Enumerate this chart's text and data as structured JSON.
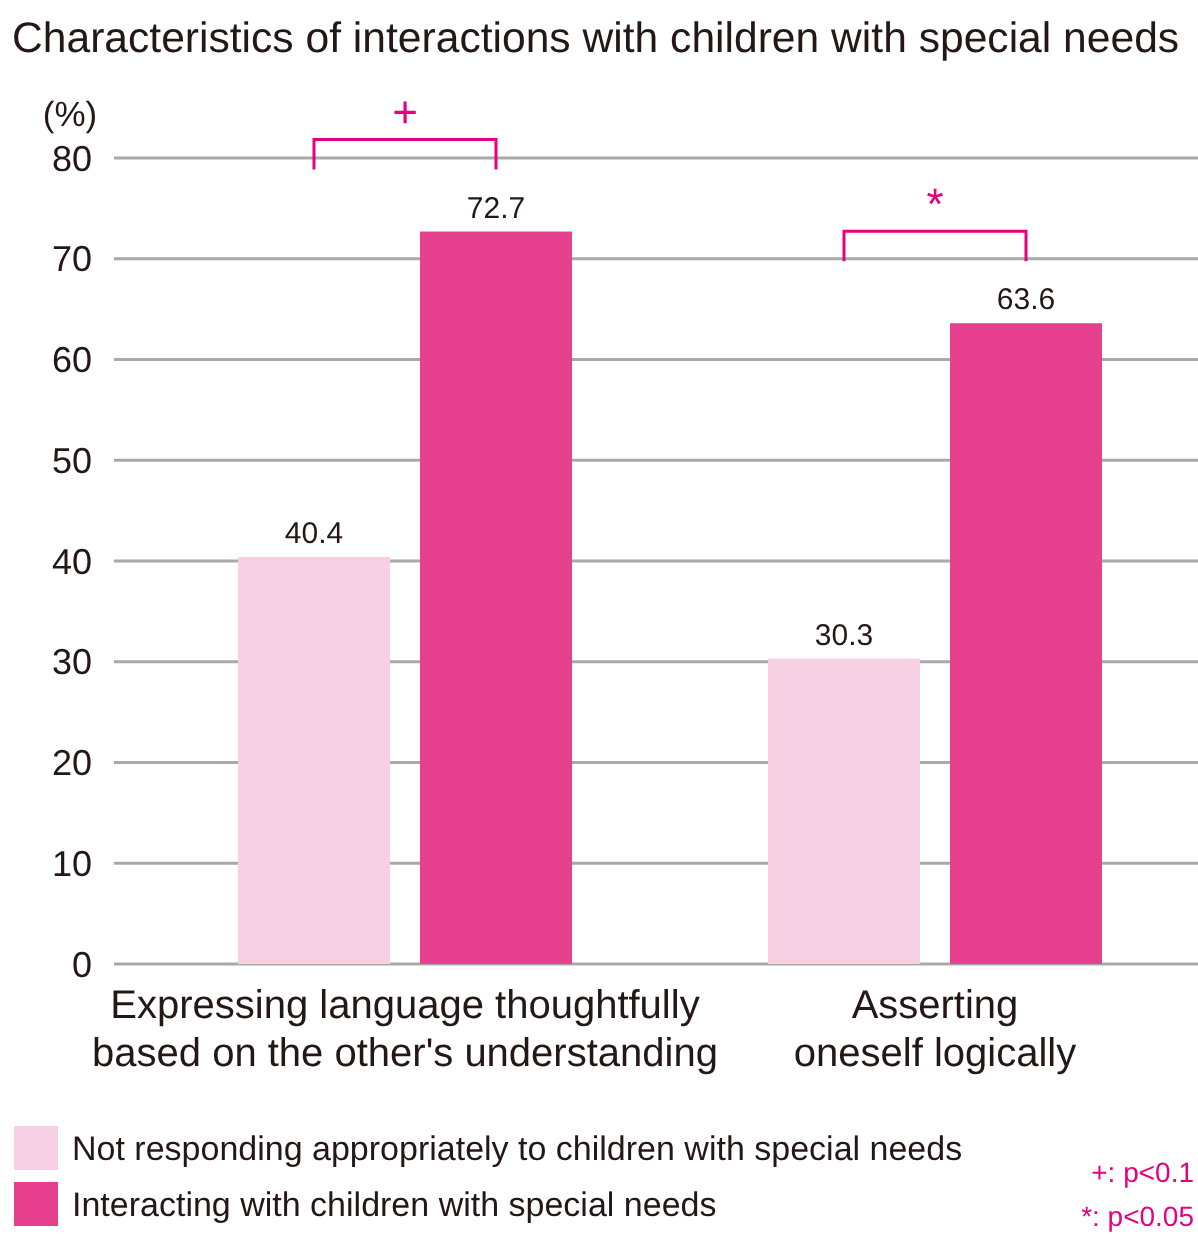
{
  "chart_data": {
    "type": "bar",
    "title": "Characteristics of interactions with children with special needs",
    "ylabel": "(%)",
    "categories": [
      "Expressing language thoughtfully\nbased on the other's understanding",
      "Asserting\noneself logically"
    ],
    "series": [
      {
        "name": "Not responding appropriately to children with special needs",
        "color": "#f7d1e3",
        "values": [
          40.4,
          30.3
        ]
      },
      {
        "name": "Interacting with children with special needs",
        "color": "#e6408e",
        "values": [
          72.7,
          63.6
        ]
      }
    ],
    "ylim": [
      0,
      80
    ],
    "yticks": [
      0,
      10,
      20,
      30,
      40,
      50,
      60,
      70,
      80
    ],
    "grid": "y",
    "legend": "bottom left",
    "data_labels": true,
    "annotations": [
      "+",
      "*",
      "+: p<0.1",
      "*: p<0.05"
    ]
  }
}
